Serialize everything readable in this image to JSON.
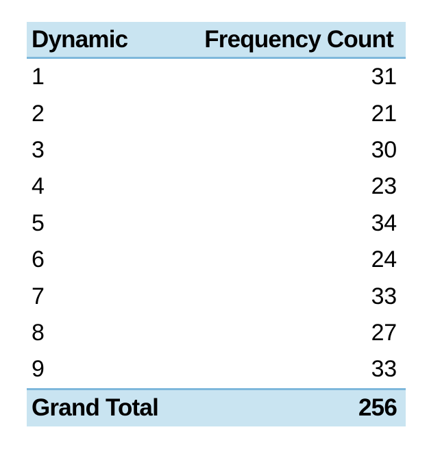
{
  "table": {
    "header": {
      "row_label": "Dynamic",
      "value_label": "Frequency Count"
    },
    "rows": [
      {
        "label": "1",
        "value": "31"
      },
      {
        "label": "2",
        "value": "21"
      },
      {
        "label": "3",
        "value": "30"
      },
      {
        "label": "4",
        "value": "23"
      },
      {
        "label": "5",
        "value": "34"
      },
      {
        "label": "6",
        "value": "24"
      },
      {
        "label": "7",
        "value": "33"
      },
      {
        "label": "8",
        "value": "27"
      },
      {
        "label": "9",
        "value": "33"
      }
    ],
    "grand_total": {
      "label": "Grand Total",
      "value": "256"
    }
  },
  "colors": {
    "header_fill": "#c9e4f1",
    "rule": "#7eb8db",
    "text": "#000000"
  }
}
